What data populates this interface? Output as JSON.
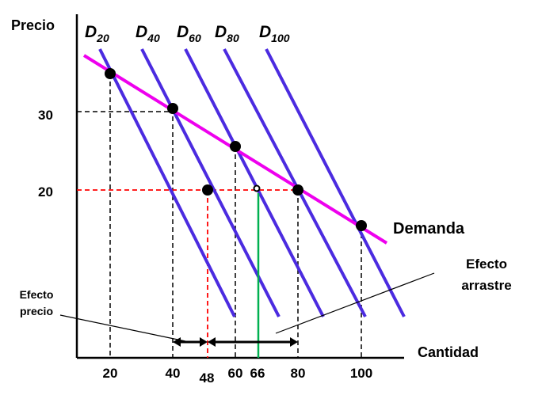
{
  "axes": {
    "y_title": "Precio",
    "x_title": "Cantidad"
  },
  "price_ticks": [
    {
      "label": "30",
      "color": "#000000"
    },
    {
      "label": "20",
      "color": "#ff0000"
    }
  ],
  "quantity_ticks": [
    {
      "label": "20",
      "color": "#000000"
    },
    {
      "label": "40",
      "color": "#000000"
    },
    {
      "label": "48",
      "color": "#ff0000"
    },
    {
      "label": "60",
      "color": "#000000"
    },
    {
      "label": "66",
      "color": "#00b050"
    },
    {
      "label": "80",
      "color": "#000000"
    },
    {
      "label": "100",
      "color": "#000000"
    }
  ],
  "demand_curves": [
    {
      "letter": "D",
      "sub": "20"
    },
    {
      "letter": "D",
      "sub": "40"
    },
    {
      "letter": "D",
      "sub": "60"
    },
    {
      "letter": "D",
      "sub": "80"
    },
    {
      "letter": "D",
      "sub": "100"
    }
  ],
  "market_demand_label": "Demanda",
  "annotations": {
    "bandwagon_line1": "Efecto",
    "bandwagon_line2": "arrastre",
    "price_effect_line1": "Efecto",
    "price_effect_line2": "precio"
  },
  "colors": {
    "individual_demand": "#4b2be0",
    "market_demand": "#ee00ee",
    "price_highlight": "#ff0000",
    "bandwagon_highlight": "#00b050",
    "guides": "#000000"
  }
}
